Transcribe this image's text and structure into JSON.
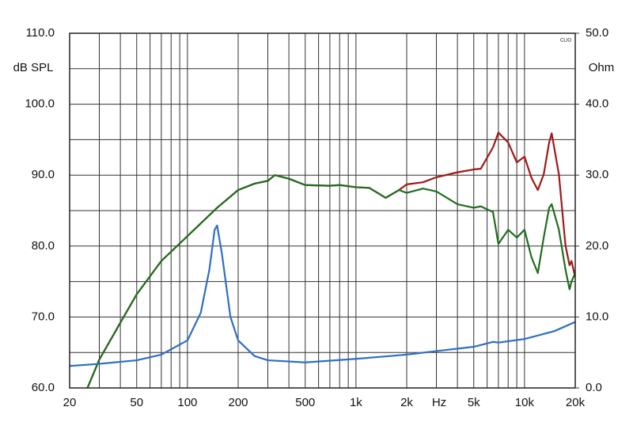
{
  "chart_data": {
    "type": "line",
    "x_label": "Hz",
    "y_label": "dB SPL",
    "y2_label": "Ohm",
    "brand": "CLIO",
    "xlim": [
      20,
      20000
    ],
    "log_x": true,
    "xticks": [
      20,
      50,
      100,
      200,
      500,
      {
        "value": 1000,
        "label": "1k"
      },
      {
        "value": 2000,
        "label": "2k"
      },
      {
        "value": 5000,
        "label": "5k"
      },
      {
        "value": 10000,
        "label": "10k"
      },
      {
        "value": 20000,
        "label": "20k"
      }
    ],
    "xgrid": [
      30,
      40,
      60,
      70,
      80,
      90,
      300,
      400,
      600,
      700,
      800,
      900,
      3000,
      4000,
      6000,
      7000,
      8000,
      9000
    ],
    "ylim": [
      60,
      110
    ],
    "yticks": [
      {
        "value": 60,
        "label": "60.0"
      },
      {
        "value": 70,
        "label": "70.0"
      },
      {
        "value": 80,
        "label": "80.0"
      },
      {
        "value": 90,
        "label": "90.0"
      },
      {
        "value": 100,
        "label": "100.0"
      },
      {
        "value": 110,
        "label": "110.0"
      }
    ],
    "ygrid": [
      65,
      75,
      85,
      95,
      105
    ],
    "y2lim": [
      0,
      50
    ],
    "y2ticks": [
      {
        "value": 0,
        "label": "0.0"
      },
      {
        "value": 10,
        "label": "10.0"
      },
      {
        "value": 20,
        "label": "20.0"
      },
      {
        "value": 30,
        "label": "30.0"
      },
      {
        "value": 40,
        "label": "40.0"
      },
      {
        "value": 50,
        "label": "50.0"
      }
    ],
    "grid": true,
    "series": [
      {
        "color": "#a01818",
        "x": [
          25,
          30,
          40,
          50,
          70,
          100,
          150,
          200,
          250,
          300,
          330,
          400,
          500,
          700,
          800,
          1000,
          1200,
          1500,
          1800,
          2000,
          2500,
          3000,
          4000,
          5000,
          5500,
          6500,
          7000,
          8000,
          9000,
          10000,
          11000,
          12000,
          13000,
          14000,
          14500,
          16000,
          17500,
          18500,
          19000,
          20000
        ],
        "values": [
          59.5,
          64,
          69.2,
          73.2,
          77.9,
          81.4,
          85.4,
          87.9,
          88.8,
          89.2,
          90.0,
          89.5,
          88.6,
          88.5,
          88.6,
          88.3,
          88.2,
          86.8,
          87.9,
          88.7,
          89.0,
          89.7,
          90.4,
          90.8,
          90.9,
          93.9,
          96.0,
          94.6,
          91.8,
          92.6,
          89.6,
          87.9,
          90.1,
          94.6,
          95.9,
          90.1,
          80.1,
          77.3,
          77.9,
          75.6
        ]
      },
      {
        "color": "#1f6e1f",
        "x": [
          25,
          30,
          40,
          50,
          70,
          100,
          150,
          200,
          250,
          300,
          330,
          400,
          500,
          700,
          800,
          1000,
          1200,
          1500,
          1800,
          2000,
          2500,
          3000,
          4000,
          5000,
          5500,
          6500,
          7000,
          8000,
          9000,
          10000,
          11000,
          12000,
          13000,
          14000,
          14500,
          16000,
          17500,
          18500,
          19000,
          20000
        ],
        "values": [
          59.5,
          64,
          69.2,
          73.2,
          77.9,
          81.4,
          85.4,
          87.9,
          88.8,
          89.2,
          90.0,
          89.5,
          88.6,
          88.5,
          88.6,
          88.3,
          88.2,
          86.8,
          87.9,
          87.5,
          88.1,
          87.7,
          85.9,
          85.4,
          85.6,
          84.8,
          80.3,
          82.3,
          81.2,
          82.3,
          78.4,
          76.2,
          81.2,
          85.4,
          85.9,
          82.3,
          76.7,
          73.9,
          75.0,
          76.2
        ]
      },
      {
        "color": "#2e6fc4",
        "axis": "y2",
        "x": [
          20,
          30,
          50,
          70,
          100,
          120,
          135,
          145,
          150,
          160,
          180,
          200,
          250,
          300,
          500,
          1000,
          2000,
          3000,
          5000,
          6500,
          7000,
          10000,
          15000,
          20000
        ],
        "values": [
          3.1,
          3.4,
          3.9,
          4.7,
          6.7,
          10.6,
          16.7,
          22.3,
          22.9,
          19.0,
          10.0,
          6.7,
          4.5,
          3.9,
          3.6,
          4.1,
          4.7,
          5.2,
          5.8,
          6.5,
          6.4,
          6.9,
          8.0,
          9.3
        ]
      }
    ]
  }
}
